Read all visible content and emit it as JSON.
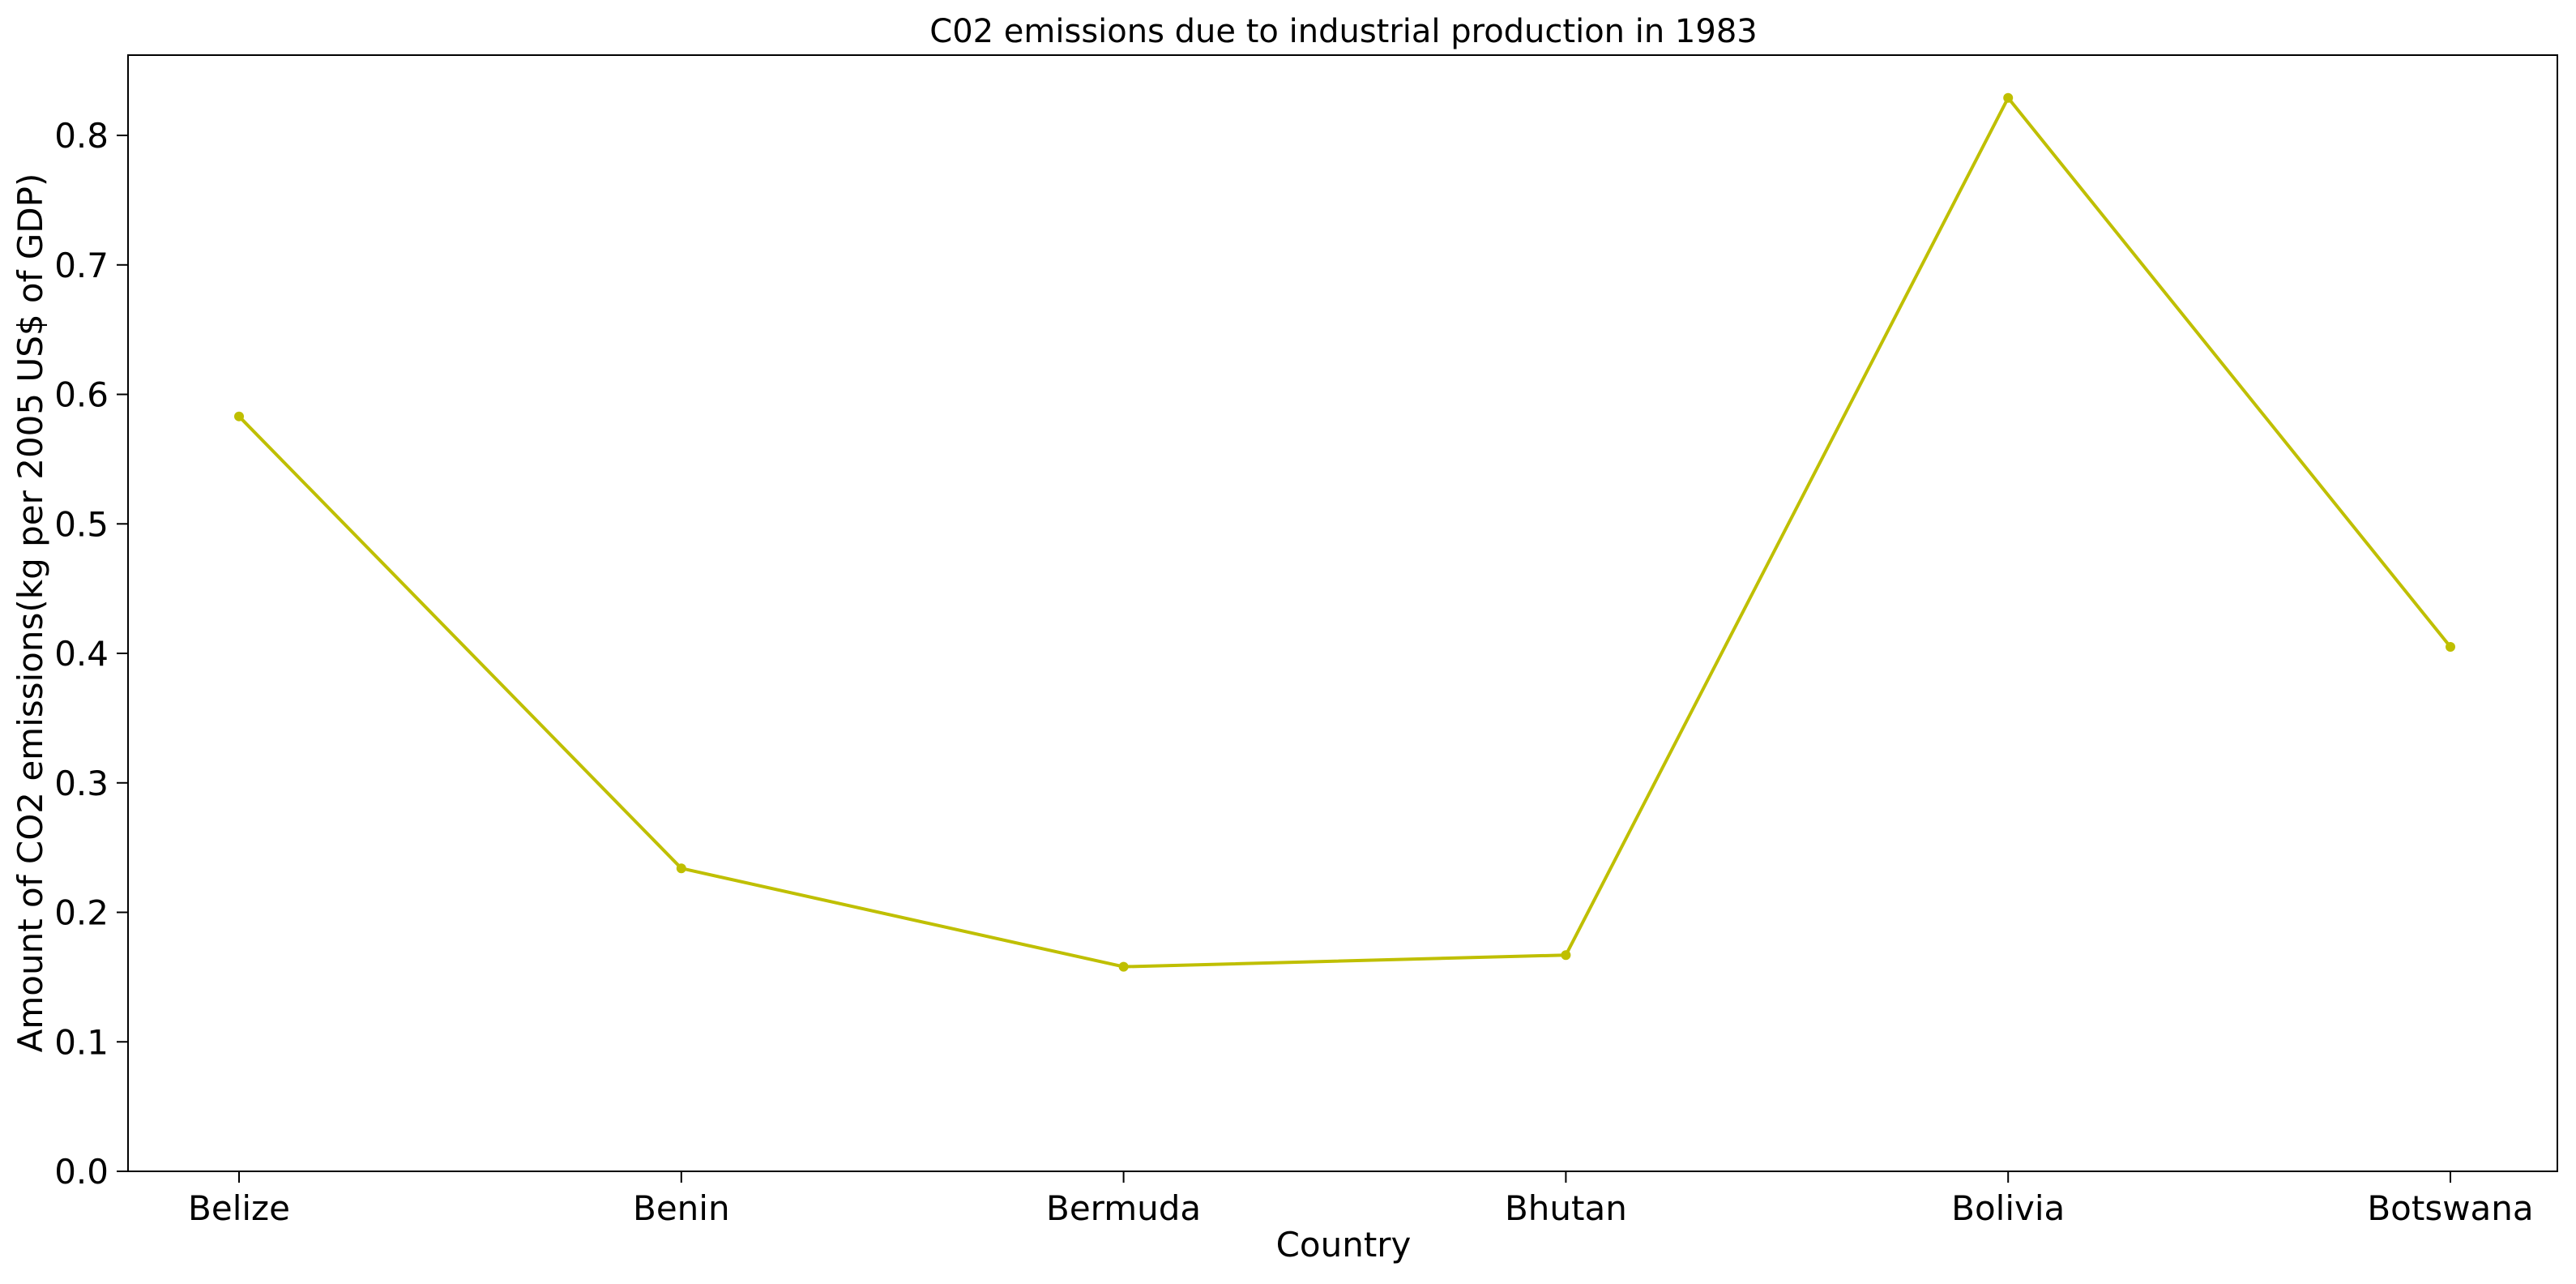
{
  "chart_data": {
    "type": "line",
    "title": "C02 emissions due to industrial production in 1983",
    "xlabel": "Country",
    "ylabel": "Amount of CO2 emissions(kg per 2005 US$ of GDP)",
    "categories": [
      "Belize",
      "Benin",
      "Bermuda",
      "Bhutan",
      "Bolivia",
      "Botswana"
    ],
    "series": [
      {
        "values": [
          0.583,
          0.234,
          0.158,
          0.167,
          0.829,
          0.405
        ],
        "color": "#bfbf00",
        "marker": "circle"
      }
    ],
    "ylim": [
      0.0,
      0.862
    ],
    "yticks": [
      "0.0",
      "0.1",
      "0.2",
      "0.3",
      "0.4",
      "0.5",
      "0.6",
      "0.7",
      "0.8"
    ],
    "grid": false,
    "legend": "none"
  }
}
